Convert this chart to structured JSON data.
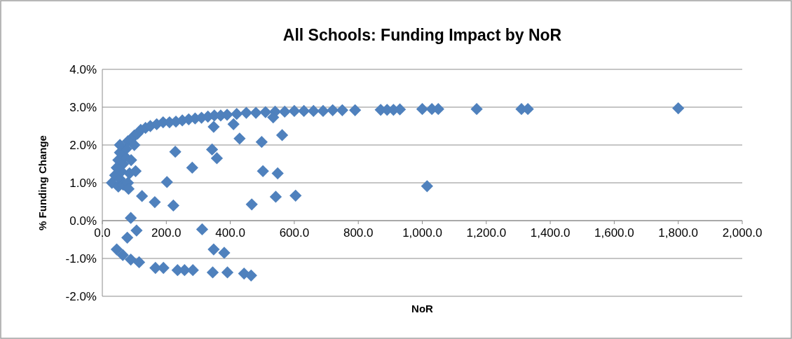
{
  "chart_data": {
    "type": "scatter",
    "title": "All Schools: Funding Impact by NoR",
    "xlabel": "NoR",
    "ylabel": "% Funding Change",
    "marker": "diamond",
    "grid": "y",
    "xlim": [
      0,
      2000
    ],
    "xticks": [
      {
        "value": 0,
        "label": "0.0"
      },
      {
        "value": 200,
        "label": "200.0"
      },
      {
        "value": 400,
        "label": "400.0"
      },
      {
        "value": 600,
        "label": "600.0"
      },
      {
        "value": 800,
        "label": "800.0"
      },
      {
        "value": 1000,
        "label": "1,000.0"
      },
      {
        "value": 1200,
        "label": "1,200.0"
      },
      {
        "value": 1400,
        "label": "1,400.0"
      },
      {
        "value": 1600,
        "label": "1,600.0"
      },
      {
        "value": 1800,
        "label": "1,800.0"
      },
      {
        "value": 2000,
        "label": "2,000.0"
      }
    ],
    "ylim": [
      -2,
      4
    ],
    "yticks": [
      {
        "value": -2,
        "label": "-2.0%"
      },
      {
        "value": -1,
        "label": "-1.0%"
      },
      {
        "value": 0,
        "label": "0.0%"
      },
      {
        "value": 1,
        "label": "1.0%"
      },
      {
        "value": 2,
        "label": "2.0%"
      },
      {
        "value": 3,
        "label": "3.0%"
      },
      {
        "value": 4,
        "label": "4.0%"
      }
    ],
    "series": [
      {
        "color": "#4f81bd",
        "x": [
          30,
          40,
          50,
          80,
          90,
          100,
          110,
          120,
          135,
          150,
          170,
          190,
          210,
          230,
          250,
          270,
          290,
          310,
          330,
          350,
          370,
          390,
          420,
          450,
          480,
          510,
          540,
          570,
          600,
          630,
          660,
          690,
          720,
          750,
          790,
          870,
          890,
          910,
          930,
          1000,
          1030,
          1050,
          1170,
          1310,
          1330,
          1800,
          50,
          55,
          60,
          65,
          70,
          45,
          55,
          75,
          85,
          90,
          65,
          100,
          55,
          80,
          104,
          82,
          228,
          281,
          202,
          343,
          358,
          429,
          498,
          562,
          348,
          410,
          534,
          502,
          548,
          124,
          164,
          222,
          467,
          542,
          604,
          89,
          107,
          312,
          78,
          348,
          381,
          45,
          64,
          89,
          115,
          166,
          191,
          235,
          257,
          283,
          345,
          391,
          443,
          465,
          1015
        ],
        "values": [
          1.0,
          1.2,
          1.6,
          2.1,
          2.15,
          2.25,
          2.3,
          2.4,
          2.45,
          2.5,
          2.55,
          2.6,
          2.6,
          2.62,
          2.65,
          2.68,
          2.7,
          2.72,
          2.75,
          2.78,
          2.78,
          2.8,
          2.82,
          2.85,
          2.85,
          2.87,
          2.88,
          2.88,
          2.9,
          2.9,
          2.9,
          2.9,
          2.92,
          2.92,
          2.92,
          2.93,
          2.93,
          2.93,
          2.94,
          2.95,
          2.95,
          2.95,
          2.95,
          2.95,
          2.95,
          2.97,
          0.9,
          1.1,
          1.3,
          1.5,
          1.7,
          1.4,
          1.8,
          1.9,
          1.25,
          1.6,
          0.95,
          2.0,
          2.0,
          1.0,
          1.31,
          0.84,
          1.82,
          1.4,
          1.02,
          1.88,
          1.65,
          2.17,
          2.08,
          2.26,
          2.48,
          2.55,
          2.73,
          1.31,
          1.25,
          0.65,
          0.49,
          0.4,
          0.43,
          0.63,
          0.66,
          0.07,
          -0.26,
          -0.23,
          -0.45,
          -0.76,
          -0.85,
          -0.76,
          -0.91,
          -1.03,
          -1.1,
          -1.25,
          -1.25,
          -1.31,
          -1.31,
          -1.31,
          -1.37,
          -1.37,
          -1.4,
          -1.45,
          0.91
        ]
      }
    ]
  }
}
